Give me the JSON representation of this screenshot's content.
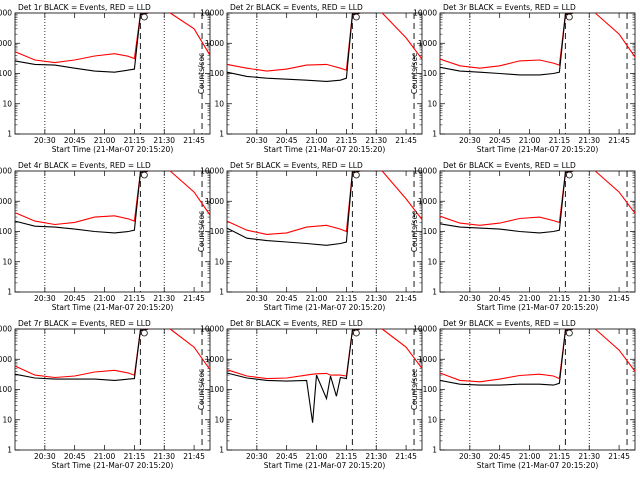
{
  "colors": {
    "background": "#ffffff",
    "events": "#000000",
    "lld": "#ff0000",
    "axis": "#000000"
  },
  "shared": {
    "ylabel": "Counts/sec",
    "xlabel": "Start Time (21-Mar-07 20:15:20)",
    "x_ticks": [
      "20:30",
      "20:45",
      "21:00",
      "21:15",
      "21:30",
      "21:45"
    ],
    "y_ticks": [
      "1",
      "10",
      "100",
      "1000",
      "10000"
    ]
  },
  "chart_data": [
    {
      "type": "line",
      "title": "Det 1r BLACK = Events, RED = LLD",
      "ylim": [
        1,
        10000
      ],
      "y_scale": "log",
      "x": [
        "20:15",
        "20:25",
        "20:35",
        "20:45",
        "20:55",
        "21:05",
        "21:12",
        "21:15",
        "21:18",
        "21:22",
        "21:28",
        "21:33",
        "21:45",
        "21:53"
      ],
      "series": [
        {
          "name": "Events",
          "values": [
            260,
            200,
            190,
            150,
            120,
            110,
            130,
            140,
            9000,
            10000,
            null,
            10000,
            null,
            null
          ]
        },
        {
          "name": "LLD",
          "values": [
            520,
            280,
            230,
            280,
            380,
            450,
            370,
            310,
            9000,
            10000,
            null,
            10000,
            3000,
            400
          ]
        }
      ]
    },
    {
      "type": "line",
      "title": "Det 2r BLACK = Events, RED = LLD",
      "ylim": [
        1,
        10000
      ],
      "y_scale": "log",
      "x": [
        "20:15",
        "20:25",
        "20:35",
        "20:45",
        "20:55",
        "21:05",
        "21:12",
        "21:15",
        "21:18",
        "21:22",
        "21:28",
        "21:33",
        "21:45",
        "21:53"
      ],
      "series": [
        {
          "name": "Events",
          "values": [
            110,
            80,
            70,
            65,
            60,
            55,
            60,
            70,
            9000,
            10000,
            null,
            10000,
            null,
            null
          ]
        },
        {
          "name": "LLD",
          "values": [
            200,
            150,
            120,
            140,
            190,
            200,
            150,
            130,
            9000,
            10000,
            null,
            10000,
            1500,
            300
          ]
        }
      ]
    },
    {
      "type": "line",
      "title": "Det 3r BLACK = Events, RED = LLD",
      "ylim": [
        1,
        10000
      ],
      "y_scale": "log",
      "x": [
        "20:15",
        "20:25",
        "20:35",
        "20:45",
        "20:55",
        "21:05",
        "21:12",
        "21:15",
        "21:18",
        "21:22",
        "21:28",
        "21:33",
        "21:45",
        "21:53"
      ],
      "series": [
        {
          "name": "Events",
          "values": [
            160,
            120,
            110,
            100,
            90,
            90,
            100,
            110,
            9000,
            10000,
            null,
            10000,
            null,
            null
          ]
        },
        {
          "name": "LLD",
          "values": [
            300,
            180,
            150,
            180,
            260,
            280,
            220,
            190,
            9000,
            10000,
            null,
            10000,
            2000,
            350
          ]
        }
      ]
    },
    {
      "type": "line",
      "title": "Det 4r BLACK = Events, RED = LLD",
      "ylim": [
        1,
        10000
      ],
      "y_scale": "log",
      "x": [
        "20:15",
        "20:25",
        "20:35",
        "20:45",
        "20:55",
        "21:05",
        "21:12",
        "21:15",
        "21:18",
        "21:22",
        "21:28",
        "21:33",
        "21:45",
        "21:53"
      ],
      "series": [
        {
          "name": "Events",
          "values": [
            220,
            150,
            140,
            120,
            100,
            90,
            100,
            110,
            9000,
            10000,
            null,
            10000,
            null,
            null
          ]
        },
        {
          "name": "LLD",
          "values": [
            420,
            220,
            170,
            200,
            300,
            330,
            260,
            220,
            9000,
            10000,
            null,
            10000,
            2000,
            350
          ]
        }
      ]
    },
    {
      "type": "line",
      "title": "Det 5r BLACK = Events, RED = LLD",
      "ylim": [
        1,
        10000
      ],
      "y_scale": "log",
      "x": [
        "20:15",
        "20:25",
        "20:35",
        "20:45",
        "20:55",
        "21:05",
        "21:12",
        "21:15",
        "21:18",
        "21:22",
        "21:28",
        "21:33",
        "21:45",
        "21:53"
      ],
      "series": [
        {
          "name": "Events",
          "values": [
            130,
            60,
            50,
            45,
            40,
            35,
            40,
            45,
            9000,
            10000,
            null,
            10000,
            null,
            null
          ]
        },
        {
          "name": "LLD",
          "values": [
            220,
            110,
            80,
            90,
            140,
            160,
            120,
            100,
            9000,
            10000,
            null,
            10000,
            1200,
            250
          ]
        }
      ]
    },
    {
      "type": "line",
      "title": "Det 6r BLACK = Events, RED = LLD",
      "ylim": [
        1,
        10000
      ],
      "y_scale": "log",
      "x": [
        "20:15",
        "20:25",
        "20:35",
        "20:45",
        "20:55",
        "21:05",
        "21:12",
        "21:15",
        "21:18",
        "21:22",
        "21:28",
        "21:33",
        "21:45",
        "21:53"
      ],
      "series": [
        {
          "name": "Events",
          "values": [
            180,
            140,
            130,
            120,
            100,
            90,
            100,
            110,
            9000,
            10000,
            null,
            10000,
            null,
            null
          ]
        },
        {
          "name": "LLD",
          "values": [
            320,
            190,
            160,
            190,
            270,
            300,
            230,
            200,
            9000,
            10000,
            null,
            10000,
            2000,
            400
          ]
        }
      ]
    },
    {
      "type": "line",
      "title": "Det 7r BLACK = Events, RED = LLD",
      "ylim": [
        1,
        10000
      ],
      "y_scale": "log",
      "x": [
        "20:15",
        "20:25",
        "20:35",
        "20:45",
        "20:55",
        "21:05",
        "21:12",
        "21:15",
        "21:18",
        "21:22",
        "21:28",
        "21:33",
        "21:45",
        "21:53"
      ],
      "series": [
        {
          "name": "Events",
          "values": [
            320,
            240,
            220,
            220,
            220,
            200,
            220,
            230,
            9000,
            10000,
            null,
            10000,
            null,
            null
          ]
        },
        {
          "name": "LLD",
          "values": [
            600,
            300,
            250,
            280,
            380,
            430,
            350,
            300,
            9000,
            10000,
            null,
            10000,
            2500,
            450
          ]
        }
      ]
    },
    {
      "type": "line",
      "title": "Det 8r BLACK = Events, RED = LLD",
      "ylim": [
        1,
        10000
      ],
      "y_scale": "log",
      "x": [
        "20:15",
        "20:25",
        "20:35",
        "20:45",
        "20:55",
        "20:58",
        "21:00",
        "21:05",
        "21:07",
        "21:10",
        "21:12",
        "21:15",
        "21:18",
        "21:22",
        "21:28",
        "21:33",
        "21:45",
        "21:53"
      ],
      "series": [
        {
          "name": "Events",
          "values": [
            350,
            240,
            200,
            190,
            200,
            8,
            300,
            50,
            280,
            60,
            250,
            230,
            9000,
            10000,
            null,
            10000,
            null,
            null
          ]
        },
        {
          "name": "LLD",
          "values": [
            450,
            280,
            230,
            240,
            300,
            320,
            330,
            340,
            300,
            300,
            300,
            280,
            9000,
            10000,
            null,
            10000,
            2500,
            500
          ]
        }
      ]
    },
    {
      "type": "line",
      "title": "Det 9r BLACK = Events, RED = LLD",
      "ylim": [
        1,
        10000
      ],
      "y_scale": "log",
      "x": [
        "20:15",
        "20:25",
        "20:35",
        "20:45",
        "20:55",
        "21:05",
        "21:12",
        "21:15",
        "21:18",
        "21:22",
        "21:28",
        "21:33",
        "21:45",
        "21:53"
      ],
      "series": [
        {
          "name": "Events",
          "values": [
            200,
            150,
            140,
            140,
            150,
            150,
            140,
            160,
            9000,
            10000,
            null,
            10000,
            null,
            null
          ]
        },
        {
          "name": "LLD",
          "values": [
            350,
            200,
            180,
            220,
            290,
            320,
            280,
            230,
            9000,
            10000,
            null,
            10000,
            2000,
            400
          ]
        }
      ]
    }
  ]
}
